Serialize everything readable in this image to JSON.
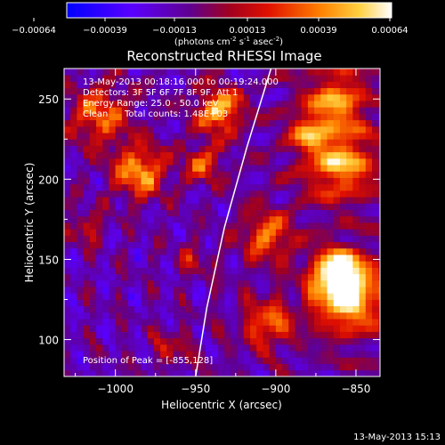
{
  "chart_data": {
    "type": "heatmap",
    "title": "Reconstructed RHESSI Image",
    "colorbar": {
      "ticks": [
        "-0.00064",
        "-0.00039",
        "-0.00013",
        "0.00013",
        "0.00039",
        "0.00064"
      ],
      "unit_main": "(photons cm",
      "unit_exp1": "-2",
      "unit_mid": " s",
      "unit_exp2": "-1",
      "unit_mid2": " asec",
      "unit_exp3": "-2",
      "unit_end": ")"
    },
    "info": {
      "time": "13-May-2013 00:18:16.000 to 00:19:24.000",
      "detectors": "Detectors: 3F 5F 6F 7F 8F 9F, Att 1",
      "energy": "Energy Range: 25.0 - 50.0 keV",
      "clean_label": "Clean",
      "counts": "Total counts: 1.48E+03"
    },
    "peak_label": "Position of Peak = [-855,128]",
    "peak": [
      -855,
      128
    ],
    "xlabel": "Heliocentric X (arcsec)",
    "ylabel": "Heliocentric Y (arcsec)",
    "xlim": [
      -1032,
      -835
    ],
    "ylim": [
      77,
      269
    ],
    "xticks": [
      -1000,
      -950,
      -900,
      -850
    ],
    "yticks": [
      100,
      150,
      200,
      250
    ],
    "xtick_labels": [
      "−1000",
      "−950",
      "−900",
      "−850"
    ],
    "ytick_labels": [
      "100",
      "150",
      "200",
      "250"
    ],
    "limb_points": [
      [
        -950,
        77
      ],
      [
        -943,
        120
      ],
      [
        -932,
        170
      ],
      [
        -918,
        220
      ],
      [
        -903,
        269
      ]
    ],
    "bright_sources": [
      {
        "x": -855,
        "y": 128,
        "r": 22,
        "v": 1.0
      },
      {
        "x": -862,
        "y": 143,
        "r": 14,
        "v": 0.85
      },
      {
        "x": -860,
        "y": 210,
        "r": 22,
        "v": 0.85
      },
      {
        "x": -862,
        "y": 250,
        "r": 18,
        "v": 0.8
      },
      {
        "x": -935,
        "y": 243,
        "r": 14,
        "v": 0.9
      },
      {
        "x": -985,
        "y": 205,
        "r": 16,
        "v": 0.85
      },
      {
        "x": -1010,
        "y": 240,
        "r": 18,
        "v": 0.75
      },
      {
        "x": -1018,
        "y": 170,
        "r": 10,
        "v": 0.6
      },
      {
        "x": -905,
        "y": 165,
        "r": 15,
        "v": 0.75
      },
      {
        "x": -905,
        "y": 110,
        "r": 14,
        "v": 0.75
      },
      {
        "x": -880,
        "y": 230,
        "r": 12,
        "v": 0.7
      },
      {
        "x": -952,
        "y": 150,
        "r": 10,
        "v": 0.55
      },
      {
        "x": -965,
        "y": 95,
        "r": 12,
        "v": 0.55
      },
      {
        "x": -945,
        "y": 210,
        "r": 12,
        "v": 0.7
      }
    ]
  },
  "footer_timestamp": "13-May-2013 15:13"
}
